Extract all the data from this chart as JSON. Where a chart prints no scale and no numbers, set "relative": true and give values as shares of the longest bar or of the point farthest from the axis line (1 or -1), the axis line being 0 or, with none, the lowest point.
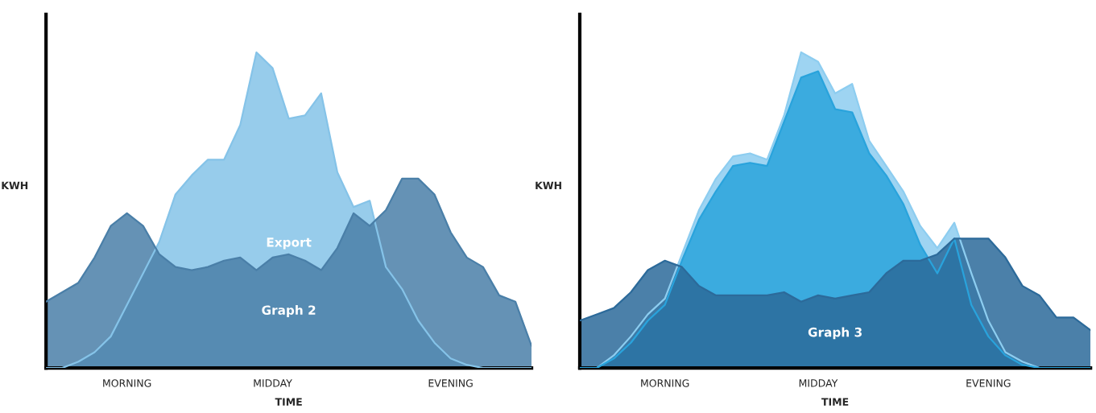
{
  "chart_data": [
    {
      "type": "area",
      "relative": true,
      "xlabel": "TIME",
      "ylabel": "KWH",
      "legend": false,
      "grid": false,
      "categories": [
        null,
        null,
        null,
        null,
        null,
        "MORNING",
        null,
        null,
        null,
        null,
        null,
        null,
        null,
        null,
        "MIDDAY",
        null,
        null,
        null,
        null,
        null,
        null,
        null,
        null,
        null,
        null,
        "EVENING",
        null,
        null,
        null,
        null,
        null
      ],
      "series": [
        {
          "name": "Export",
          "color": "#85c3e8",
          "values": [
            0,
            0,
            0.02,
            0.05,
            0.1,
            0.2,
            0.3,
            0.4,
            0.55,
            0.61,
            0.66,
            0.66,
            0.77,
            1.0,
            0.95,
            0.79,
            0.8,
            0.87,
            0.62,
            0.51,
            0.53,
            0.32,
            0.25,
            0.15,
            0.08,
            0.03,
            0.01,
            0,
            0,
            0,
            0
          ]
        },
        {
          "name": "Graph 2",
          "color": "#4a7fa8",
          "values": [
            0.21,
            0.24,
            0.27,
            0.35,
            0.45,
            0.49,
            0.45,
            0.36,
            0.32,
            0.31,
            0.32,
            0.34,
            0.35,
            0.31,
            0.35,
            0.36,
            0.34,
            0.31,
            0.38,
            0.49,
            0.45,
            0.5,
            0.6,
            0.6,
            0.55,
            0.43,
            0.35,
            0.32,
            0.23,
            0.21,
            0.07
          ]
        }
      ]
    },
    {
      "type": "area",
      "relative": true,
      "xlabel": "TIME",
      "ylabel": "KWH",
      "legend": false,
      "grid": false,
      "categories": [
        null,
        null,
        null,
        null,
        null,
        "MORNING",
        null,
        null,
        null,
        null,
        null,
        null,
        null,
        null,
        "MIDDAY",
        null,
        null,
        null,
        null,
        null,
        null,
        null,
        null,
        null,
        "EVENING",
        null,
        null,
        null,
        null,
        null,
        null
      ],
      "series": [
        {
          "color": "#8dcdf0",
          "values": [
            0,
            0,
            0.04,
            0.1,
            0.17,
            0.22,
            0.36,
            0.5,
            0.6,
            0.67,
            0.68,
            0.66,
            0.8,
            1.0,
            0.97,
            0.87,
            0.9,
            0.72,
            0.64,
            0.56,
            0.45,
            0.38,
            0.46,
            0.3,
            0.15,
            0.05,
            0.02,
            0,
            0,
            0,
            0
          ]
        },
        {
          "color": "#29a3dc",
          "values": [
            0,
            0,
            0.03,
            0.08,
            0.15,
            0.2,
            0.34,
            0.47,
            0.56,
            0.64,
            0.65,
            0.64,
            0.78,
            0.92,
            0.94,
            0.82,
            0.81,
            0.68,
            0.61,
            0.52,
            0.39,
            0.3,
            0.41,
            0.2,
            0.1,
            0.04,
            0.01,
            0,
            0,
            0,
            0
          ]
        },
        {
          "name": "Graph 3",
          "color": "#2c6a9a",
          "values": [
            0.15,
            0.17,
            0.19,
            0.24,
            0.31,
            0.34,
            0.32,
            0.26,
            0.23,
            0.23,
            0.23,
            0.23,
            0.24,
            0.21,
            0.23,
            0.22,
            0.23,
            0.24,
            0.3,
            0.34,
            0.34,
            0.36,
            0.41,
            0.41,
            0.41,
            0.35,
            0.26,
            0.23,
            0.16,
            0.16,
            0.12
          ]
        }
      ]
    }
  ]
}
